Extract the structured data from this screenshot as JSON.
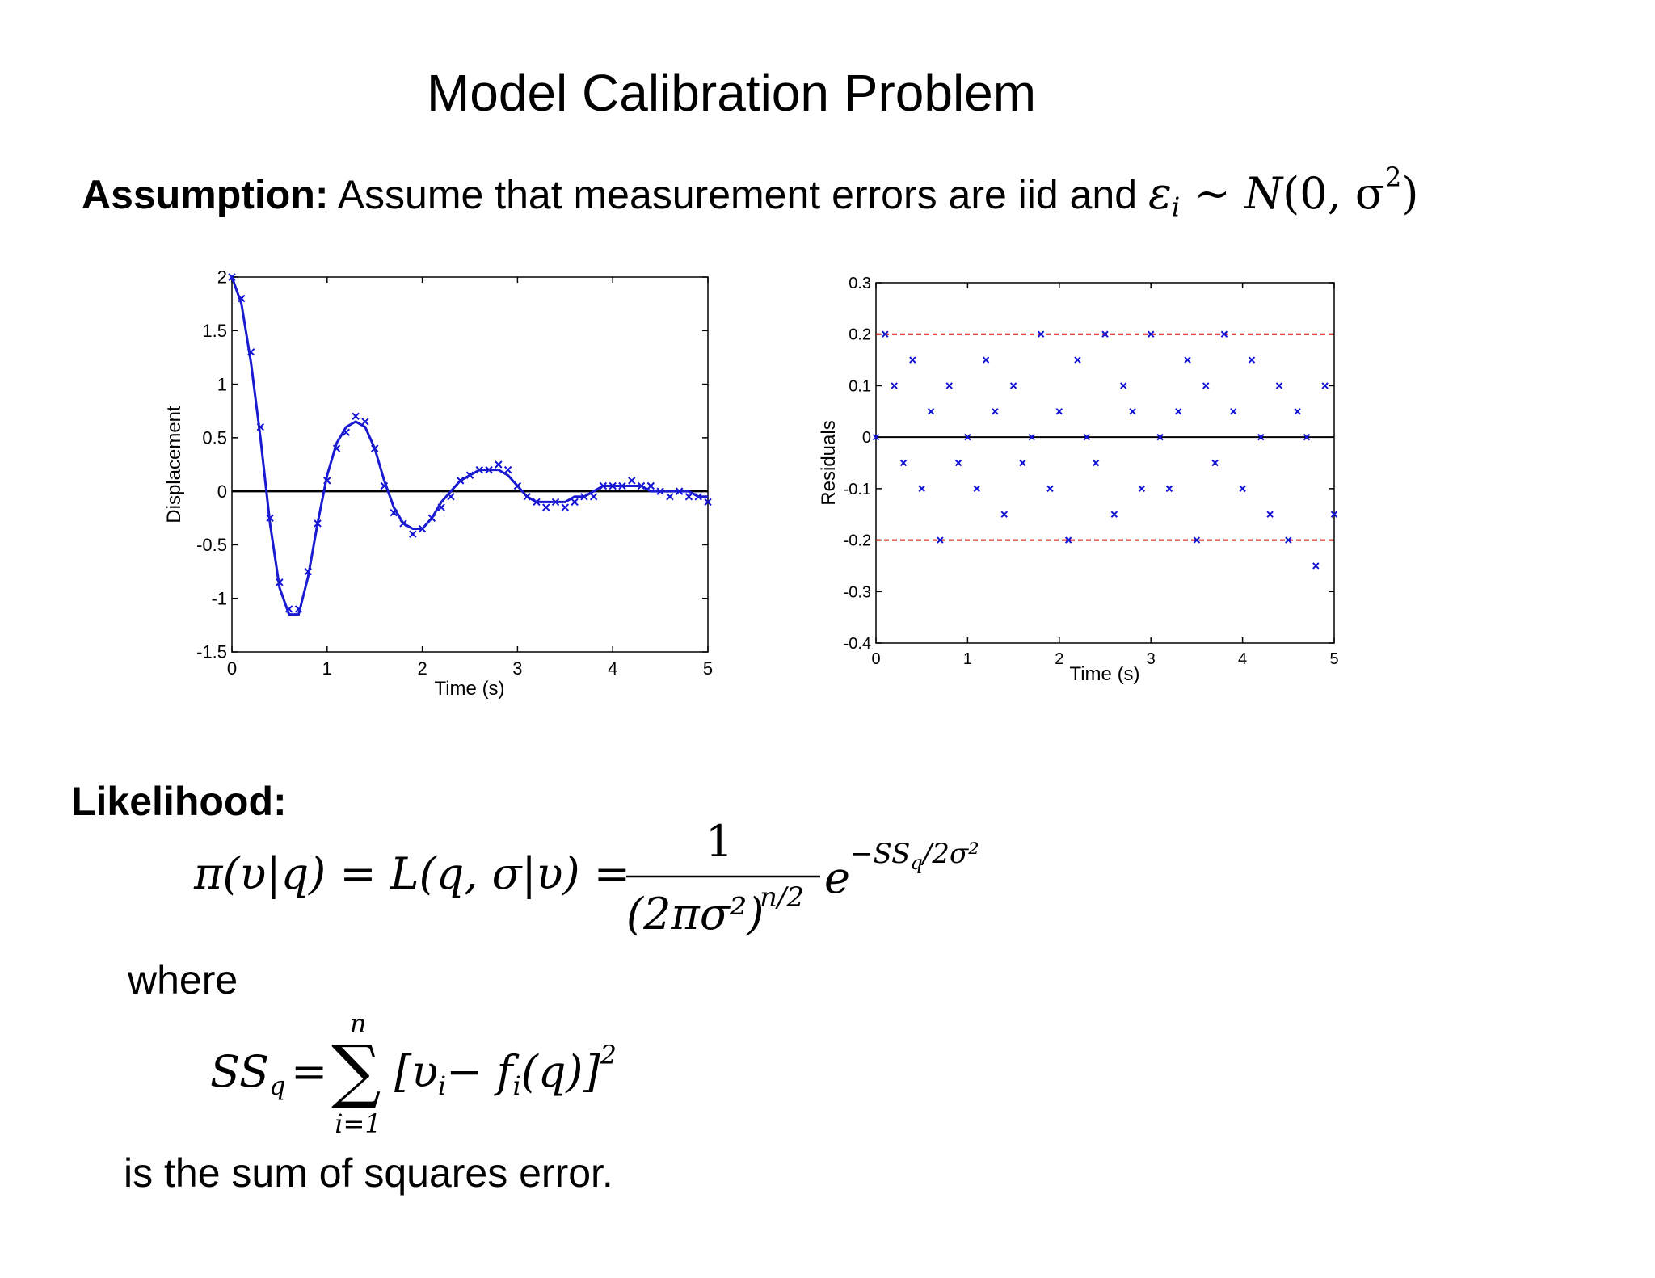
{
  "slide": {
    "title": "Model Calibration Problem",
    "assumption_label": "Assumption:",
    "assumption_text": "Assume that measurement errors are iid and",
    "assumption_math": {
      "eps": "ε",
      "eps_sub": "i",
      "tilde": "~",
      "N": "N",
      "args": "(0, σ",
      "sq": "2",
      "close": ")"
    },
    "likelihood_label": "Likelihood:",
    "where": "where",
    "sum_text": "is the sum of squares error."
  },
  "equation_likelihood": {
    "lhs": "π(υ|q) = L(q, σ|υ) =",
    "numerator": "1",
    "denominator": "(2πσ²)",
    "denominator_exp": "n/2",
    "exp_base": "e",
    "exponent": "−SS",
    "exponent_sub": "q",
    "exponent_rest": "/2σ²"
  },
  "equation_ss": {
    "lhs": "SS",
    "lhs_sub": "q",
    "equals": "=",
    "sigma": "∑",
    "upper": "n",
    "lower": "i=1",
    "body": "[υ",
    "body_sub": "i",
    "body_mid": "− f",
    "body_sub2": "i",
    "body_end": "(q)]",
    "body_sq": "2"
  },
  "colors": {
    "data": "#1212d6",
    "fit": "#1a1ad0",
    "bound": "#d41010",
    "axis": "#000000"
  },
  "chart_data": [
    {
      "type": "line",
      "xlabel": "Time (s)",
      "ylabel": "Displacement",
      "xlim": [
        0,
        5
      ],
      "ylim": [
        -1.5,
        2
      ],
      "xticks": [
        "0",
        "1",
        "2",
        "3",
        "4",
        "5"
      ],
      "yticks": [
        "-1.5",
        "-1",
        "-0.5",
        "0",
        "0.5",
        "1",
        "1.5",
        "2"
      ],
      "grid": false,
      "reference_line": {
        "y": 0
      },
      "series": [
        {
          "type": "scatter",
          "marker": "x",
          "note": "measured data, fit plus noise of about 0.1",
          "x": [
            0.0,
            0.1,
            0.2,
            0.3,
            0.4,
            0.5,
            0.6,
            0.7,
            0.8,
            0.9,
            1.0,
            1.1,
            1.2,
            1.3,
            1.4,
            1.5,
            1.6,
            1.7,
            1.8,
            1.9,
            2.0,
            2.1,
            2.2,
            2.3,
            2.4,
            2.5,
            2.6,
            2.7,
            2.8,
            2.9,
            3.0,
            3.1,
            3.2,
            3.3,
            3.4,
            3.5,
            3.6,
            3.7,
            3.8,
            3.9,
            4.0,
            4.1,
            4.2,
            4.3,
            4.4,
            4.5,
            4.6,
            4.7,
            4.8,
            4.9,
            5.0
          ],
          "y": [
            2.0,
            1.8,
            1.3,
            0.6,
            -0.25,
            -0.85,
            -1.1,
            -1.1,
            -0.75,
            -0.3,
            0.1,
            0.4,
            0.55,
            0.7,
            0.65,
            0.4,
            0.05,
            -0.2,
            -0.3,
            -0.4,
            -0.35,
            -0.25,
            -0.15,
            -0.05,
            0.1,
            0.15,
            0.2,
            0.2,
            0.25,
            0.2,
            0.05,
            -0.05,
            -0.1,
            -0.15,
            -0.1,
            -0.15,
            -0.1,
            -0.05,
            -0.05,
            0.05,
            0.05,
            0.05,
            0.1,
            0.05,
            0.05,
            0.0,
            -0.05,
            0.0,
            -0.05,
            -0.05,
            -0.1
          ]
        },
        {
          "type": "line",
          "note": "model fit",
          "x": [
            0.0,
            0.1,
            0.2,
            0.3,
            0.4,
            0.5,
            0.6,
            0.7,
            0.8,
            0.9,
            1.0,
            1.1,
            1.2,
            1.3,
            1.4,
            1.5,
            1.6,
            1.7,
            1.8,
            1.9,
            2.0,
            2.1,
            2.2,
            2.3,
            2.4,
            2.5,
            2.6,
            2.7,
            2.8,
            2.9,
            3.0,
            3.1,
            3.2,
            3.3,
            3.4,
            3.5,
            3.6,
            3.7,
            3.8,
            3.9,
            4.0,
            4.1,
            4.2,
            4.3,
            4.4,
            4.5,
            4.6,
            4.7,
            4.8,
            4.9,
            5.0
          ],
          "y": [
            2.0,
            1.75,
            1.2,
            0.5,
            -0.3,
            -0.9,
            -1.15,
            -1.15,
            -0.8,
            -0.3,
            0.15,
            0.45,
            0.6,
            0.65,
            0.6,
            0.4,
            0.1,
            -0.15,
            -0.3,
            -0.35,
            -0.35,
            -0.25,
            -0.1,
            0.0,
            0.1,
            0.15,
            0.2,
            0.2,
            0.2,
            0.15,
            0.05,
            -0.05,
            -0.1,
            -0.1,
            -0.1,
            -0.1,
            -0.05,
            -0.05,
            0.0,
            0.05,
            0.05,
            0.05,
            0.05,
            0.05,
            0.0,
            0.0,
            0.0,
            0.0,
            0.0,
            -0.05,
            -0.05
          ]
        }
      ]
    },
    {
      "type": "scatter",
      "xlabel": "Time (s)",
      "ylabel": "Residuals",
      "xlim": [
        0,
        5
      ],
      "ylim": [
        -0.4,
        0.3
      ],
      "xticks": [
        "0",
        "1",
        "2",
        "3",
        "4",
        "5"
      ],
      "yticks": [
        "-0.4",
        "-0.3",
        "-0.2",
        "-0.1",
        "0",
        "0.1",
        "0.2",
        "0.3"
      ],
      "grid": false,
      "reference_lines": [
        {
          "y": 0,
          "style": "solid"
        },
        {
          "y": 0.2,
          "style": "dashed"
        },
        {
          "y": -0.2,
          "style": "dashed"
        }
      ],
      "series": [
        {
          "marker": "x",
          "x": [
            0.0,
            0.1,
            0.2,
            0.3,
            0.4,
            0.5,
            0.6,
            0.7,
            0.8,
            0.9,
            1.0,
            1.1,
            1.2,
            1.3,
            1.4,
            1.5,
            1.6,
            1.7,
            1.8,
            1.9,
            2.0,
            2.1,
            2.2,
            2.3,
            2.4,
            2.5,
            2.6,
            2.7,
            2.8,
            2.9,
            3.0,
            3.1,
            3.2,
            3.3,
            3.4,
            3.5,
            3.6,
            3.7,
            3.8,
            3.9,
            4.0,
            4.1,
            4.2,
            4.3,
            4.4,
            4.5,
            4.6,
            4.7,
            4.8,
            4.9,
            5.0
          ],
          "y": [
            0.0,
            0.2,
            0.1,
            -0.05,
            0.15,
            -0.1,
            0.05,
            -0.2,
            0.1,
            -0.05,
            0.0,
            -0.1,
            0.15,
            0.05,
            -0.15,
            0.1,
            -0.05,
            0.0,
            0.2,
            -0.1,
            0.05,
            -0.2,
            0.15,
            0.0,
            -0.05,
            0.2,
            -0.15,
            0.1,
            0.05,
            -0.1,
            0.2,
            0.0,
            -0.1,
            0.05,
            0.15,
            -0.2,
            0.1,
            -0.05,
            0.2,
            0.05,
            -0.1,
            0.15,
            0.0,
            -0.15,
            0.1,
            -0.2,
            0.05,
            0.0,
            -0.25,
            0.1,
            -0.15
          ]
        }
      ]
    }
  ]
}
